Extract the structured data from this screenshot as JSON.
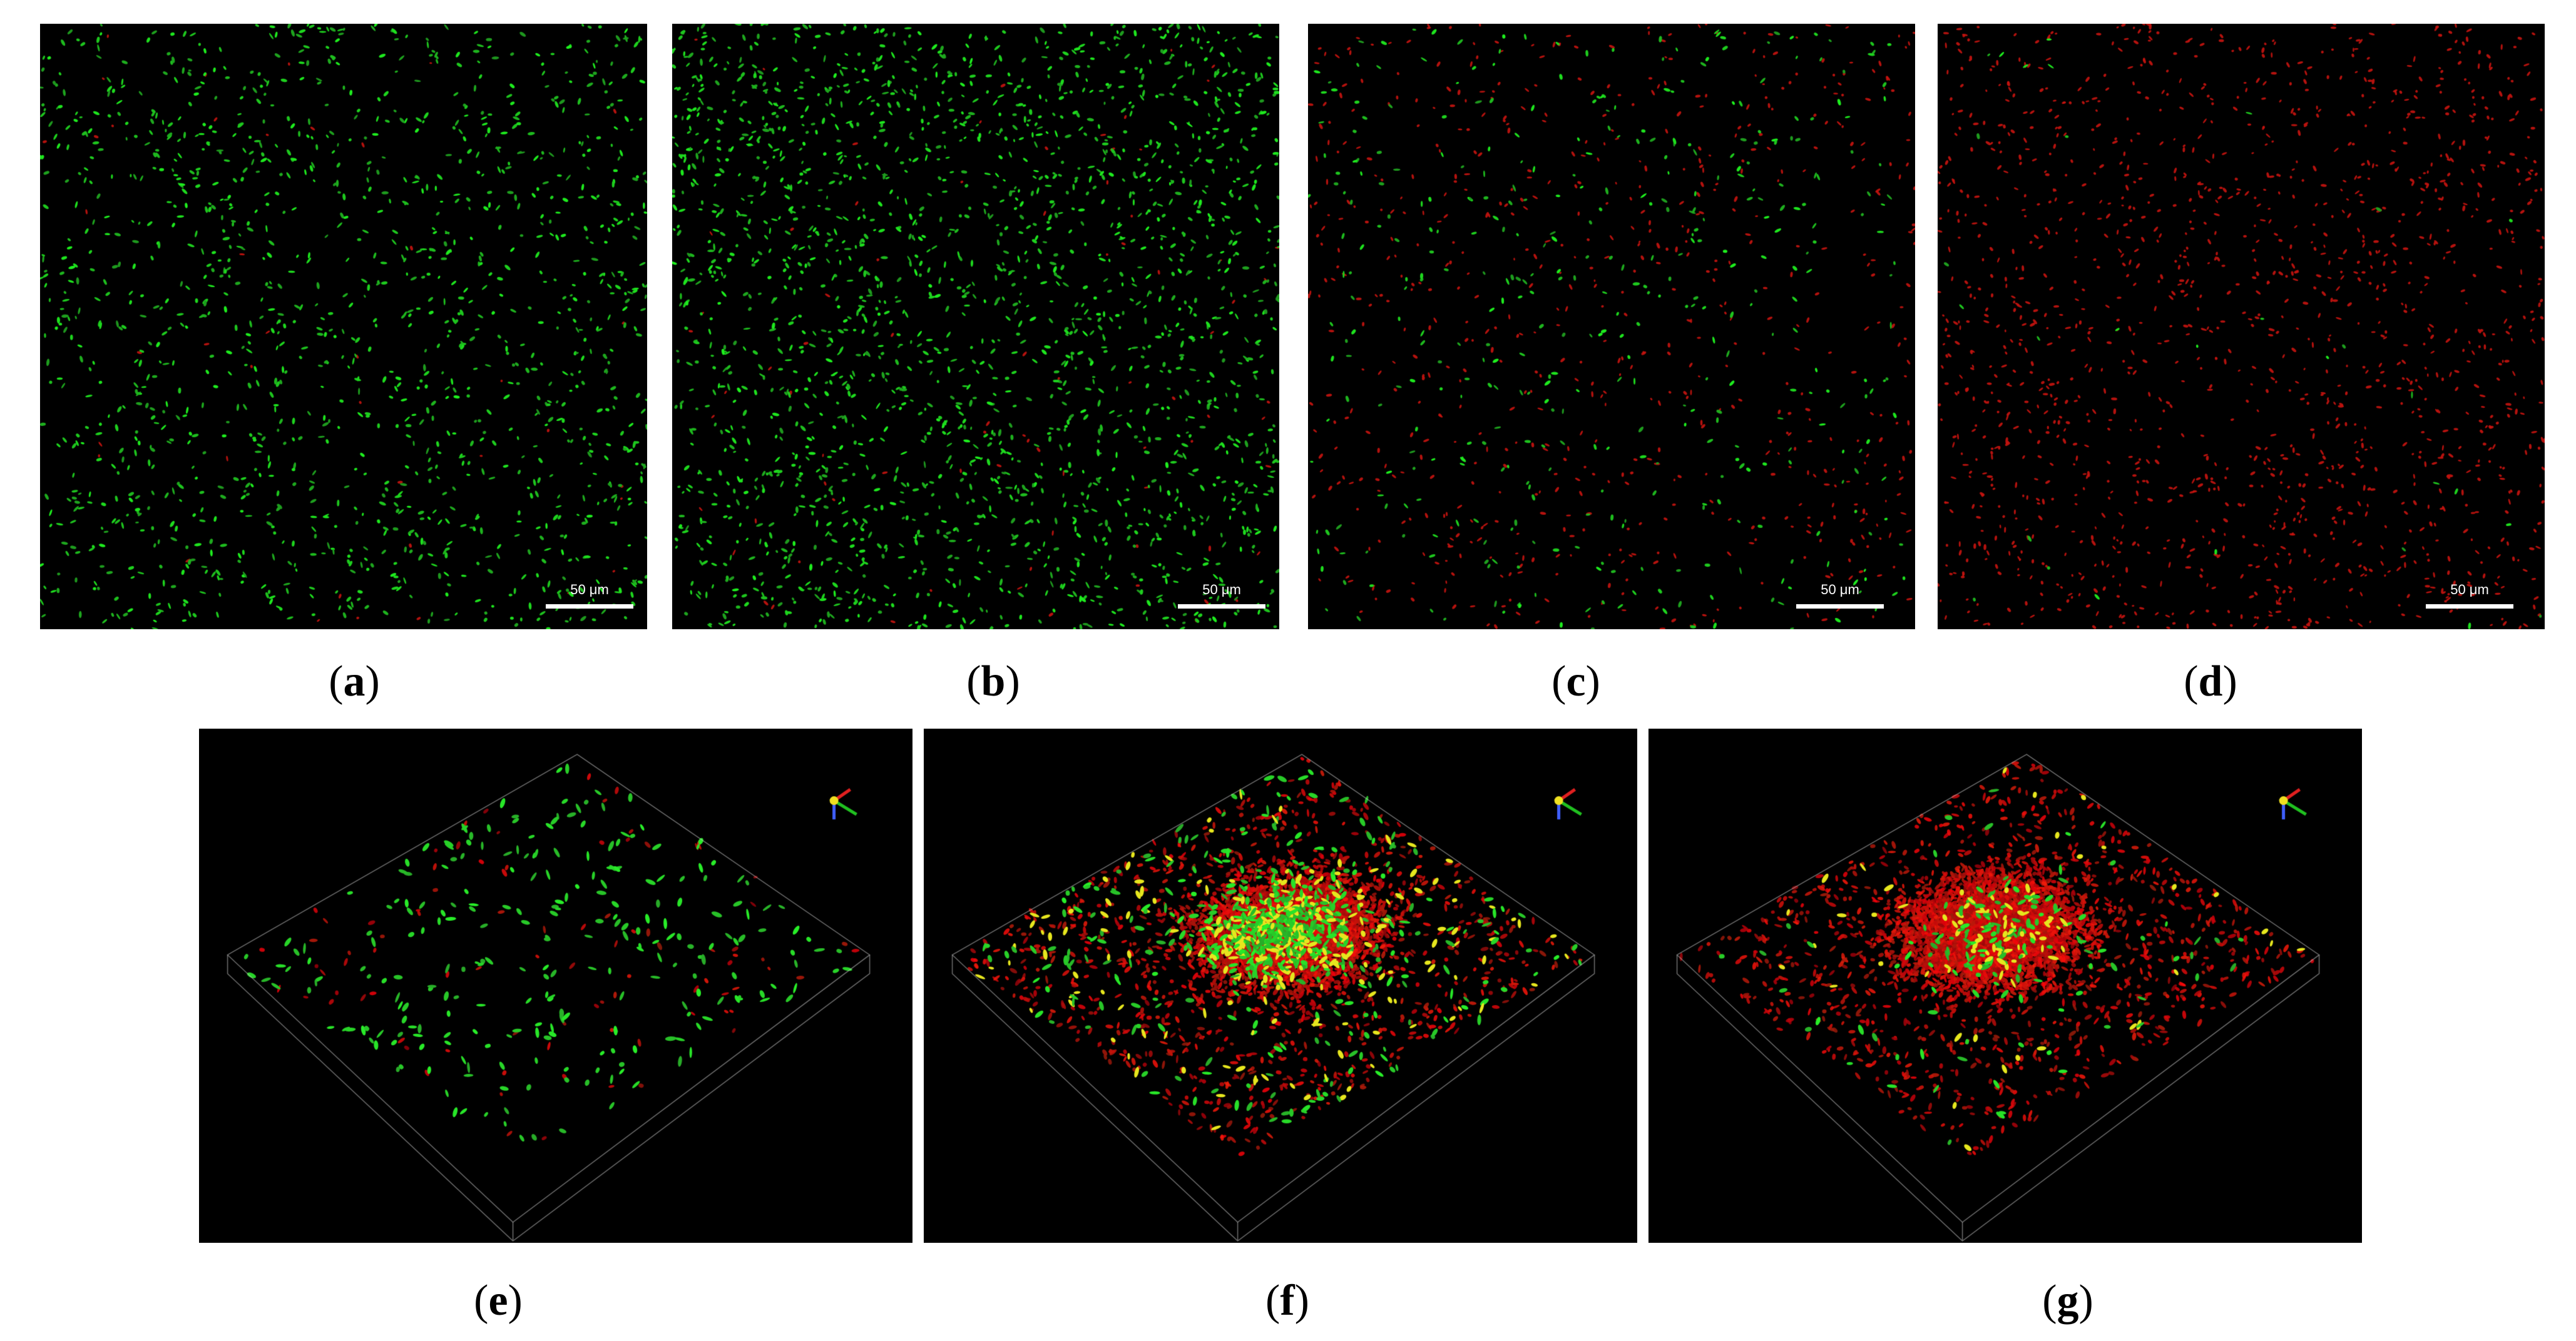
{
  "panels": [
    {
      "id": "a",
      "kind": "2d",
      "green": 1400,
      "red": 40,
      "scale_label": "50 μm"
    },
    {
      "id": "b",
      "kind": "2d",
      "green": 2100,
      "red": 80,
      "scale_label": "50 μm"
    },
    {
      "id": "c",
      "kind": "2d",
      "green": 420,
      "red": 650,
      "scale_label": "50 μm"
    },
    {
      "id": "d",
      "kind": "2d",
      "green": 30,
      "red": 1500,
      "scale_label": "50 μm"
    },
    {
      "id": "e",
      "kind": "3d",
      "green": 260,
      "red": 90,
      "density": "sparse"
    },
    {
      "id": "f",
      "kind": "3d",
      "green": 900,
      "red": 5000,
      "density": "dense"
    },
    {
      "id": "g",
      "kind": "3d",
      "green": 250,
      "red": 5200,
      "density": "dense-red"
    }
  ],
  "captions": {
    "a": "a",
    "b": "b",
    "c": "c",
    "d": "d",
    "e": "e",
    "f": "f",
    "g": "g"
  },
  "colors": {
    "green": "#2fd62f",
    "red": "#e01b10",
    "yellow": "#e6e61e",
    "background": "#000000"
  }
}
